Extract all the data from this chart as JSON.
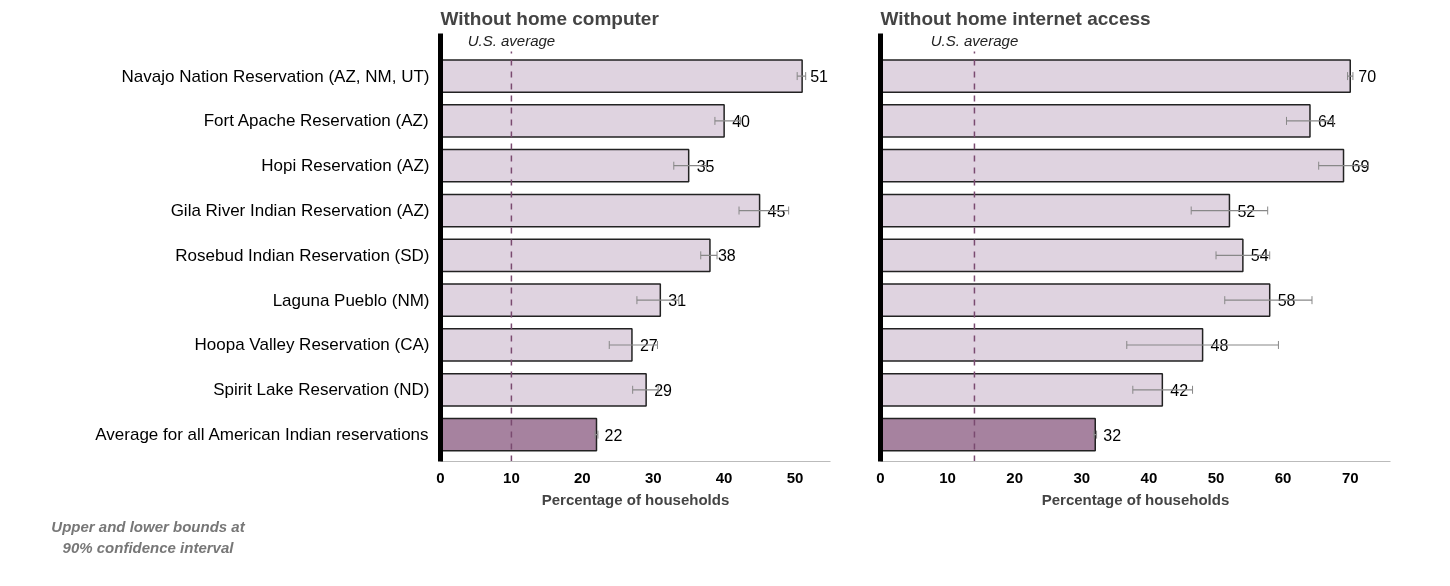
{
  "chart_data": [
    {
      "type": "bar",
      "orientation": "horizontal",
      "title": "Without home computer",
      "xlabel": "Percentage of households",
      "categories": [
        "Navajo Nation Reservation (AZ, NM, UT)",
        "Fort Apache Reservation (AZ)",
        "Hopi Reservation (AZ)",
        "Gila River Indian Reservation (AZ)",
        "Rosebud Indian Reservation (SD)",
        "Laguna Pueblo (NM)",
        "Hoopa Valley Reservation (CA)",
        "Spirit Lake Reservation (ND)",
        "Average for all American Indian reservations"
      ],
      "values": [
        51,
        40,
        35,
        45,
        38,
        31,
        27,
        29,
        22
      ],
      "colors": [
        "#dfd3e0",
        "#dfd3e0",
        "#dfd3e0",
        "#dfd3e0",
        "#dfd3e0",
        "#dfd3e0",
        "#dfd3e0",
        "#dfd3e0",
        "#a6829f"
      ],
      "errors": [
        [
          50.3,
          51.5
        ],
        [
          38.7,
          42.3
        ],
        [
          32.9,
          37.5
        ],
        [
          42.1,
          49.1
        ],
        [
          36.7,
          39.0
        ],
        [
          27.7,
          33.6
        ],
        [
          23.8,
          30.6
        ],
        [
          27.1,
          30.7
        ],
        [
          21.8,
          22.2
        ]
      ],
      "xlim": [
        0,
        55
      ],
      "xticks": [
        0,
        10,
        20,
        30,
        40,
        50
      ],
      "ref_lines": [
        {
          "axis": "x",
          "value": 10,
          "label": "U.S. average",
          "color": "#7a4a70",
          "line_style": "dashed"
        }
      ],
      "data_labels": true,
      "grid": false,
      "annotations": [
        "Upper and lower bounds at 90% confidence interval"
      ]
    },
    {
      "type": "bar",
      "orientation": "horizontal",
      "title": "Without home internet access",
      "xlabel": "Percentage of households",
      "categories": [
        null,
        null,
        null,
        null,
        null,
        null,
        null,
        null,
        null
      ],
      "values": [
        70,
        64,
        69,
        52,
        54,
        58,
        48,
        42,
        32
      ],
      "colors": [
        "#dfd3e0",
        "#dfd3e0",
        "#dfd3e0",
        "#dfd3e0",
        "#dfd3e0",
        "#dfd3e0",
        "#dfd3e0",
        "#dfd3e0",
        "#a6829f"
      ],
      "errors": [
        [
          69.6,
          70.4
        ],
        [
          60.5,
          67.5
        ],
        [
          65.3,
          72.7
        ],
        [
          46.3,
          57.7
        ],
        [
          50.0,
          58.0
        ],
        [
          51.3,
          64.3
        ],
        [
          36.7,
          59.3
        ],
        [
          37.6,
          46.5
        ],
        [
          31.8,
          32.2
        ]
      ],
      "xlim": [
        0,
        76
      ],
      "xticks": [
        0,
        10,
        20,
        30,
        40,
        50,
        60,
        70
      ],
      "ref_lines": [
        {
          "axis": "x",
          "value": 14,
          "label": "U.S. average",
          "color": "#7a4a70",
          "line_style": "dashed"
        }
      ],
      "data_labels": true,
      "grid": false,
      "tick_labels": "x"
    }
  ]
}
